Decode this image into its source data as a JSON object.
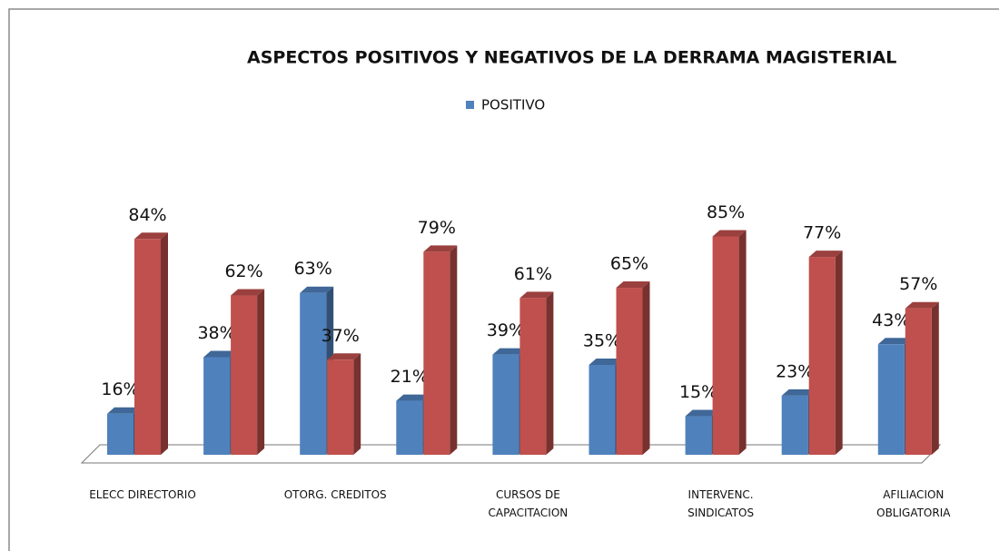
{
  "chart_data": {
    "type": "bar3d",
    "title": "ASPECTOS POSITIVOS Y NEGATIVOS DE LA DERRAMA  MAGISTERIAL",
    "categories": [
      "ELECC DIRECTORIO",
      null,
      "OTORG. CREDITOS",
      null,
      "CURSOS DE\nCAPACITACION",
      null,
      "INTERVENC.\nSINDICATOS",
      null,
      "AFILIACION\nOBLIGATORIA"
    ],
    "series": [
      {
        "name": "POSITIVO",
        "color": "#4f81bd",
        "values": [
          16,
          38,
          63,
          21,
          39,
          35,
          15,
          23,
          43
        ],
        "value_labels": [
          "16%",
          "38%",
          "63%",
          "21%",
          "39%",
          "35%",
          "15%",
          "23%",
          "43%"
        ]
      },
      {
        "color": "#c0504d",
        "values": [
          84,
          62,
          37,
          79,
          61,
          65,
          85,
          77,
          57
        ],
        "value_labels": [
          "84%",
          "62%",
          "37%",
          "79%",
          "61%",
          "65%",
          "85%",
          "77%",
          "57%"
        ]
      }
    ],
    "ylim": [
      0,
      100
    ]
  }
}
